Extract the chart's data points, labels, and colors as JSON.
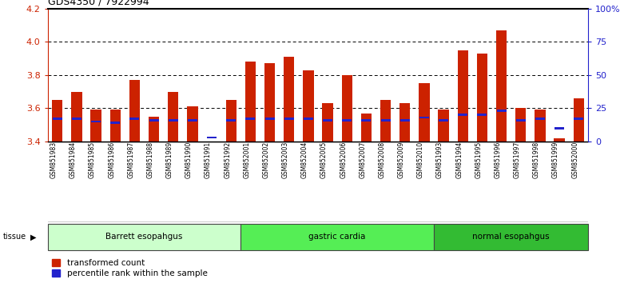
{
  "title": "GDS4350 / 7922994",
  "samples": [
    "GSM851983",
    "GSM851984",
    "GSM851985",
    "GSM851986",
    "GSM851987",
    "GSM851988",
    "GSM851989",
    "GSM851990",
    "GSM851991",
    "GSM851992",
    "GSM852001",
    "GSM852002",
    "GSM852003",
    "GSM852004",
    "GSM852005",
    "GSM852006",
    "GSM852007",
    "GSM852008",
    "GSM852009",
    "GSM852010",
    "GSM851993",
    "GSM851994",
    "GSM851995",
    "GSM851996",
    "GSM851997",
    "GSM851998",
    "GSM851999",
    "GSM852000"
  ],
  "red_values": [
    3.65,
    3.7,
    3.59,
    3.59,
    3.77,
    3.55,
    3.7,
    3.61,
    3.4,
    3.65,
    3.88,
    3.87,
    3.91,
    3.83,
    3.63,
    3.8,
    3.57,
    3.65,
    3.63,
    3.75,
    3.59,
    3.95,
    3.93,
    4.07,
    3.6,
    3.59,
    3.42,
    3.66
  ],
  "blue_pct": [
    17,
    17,
    15,
    14,
    17,
    16,
    16,
    16,
    3,
    16,
    17,
    17,
    17,
    17,
    16,
    16,
    16,
    16,
    16,
    18,
    16,
    20,
    20,
    23,
    16,
    17,
    10,
    17
  ],
  "groups": [
    {
      "label": "Barrett esopahgus",
      "start": 0,
      "end": 10,
      "color": "#ccffcc"
    },
    {
      "label": "gastric cardia",
      "start": 10,
      "end": 20,
      "color": "#55ee55"
    },
    {
      "label": "normal esopahgus",
      "start": 20,
      "end": 28,
      "color": "#33bb33"
    }
  ],
  "ylim_left": [
    3.4,
    4.2
  ],
  "ylim_right": [
    0,
    100
  ],
  "yticks_left": [
    3.4,
    3.6,
    3.8,
    4.0,
    4.2
  ],
  "yticks_right": [
    0,
    25,
    50,
    75,
    100
  ],
  "ytick_labels_right": [
    "0",
    "25",
    "50",
    "75",
    "100%"
  ],
  "red_color": "#cc2200",
  "blue_color": "#2222cc",
  "title_fontsize": 9,
  "bar_width": 0.55
}
